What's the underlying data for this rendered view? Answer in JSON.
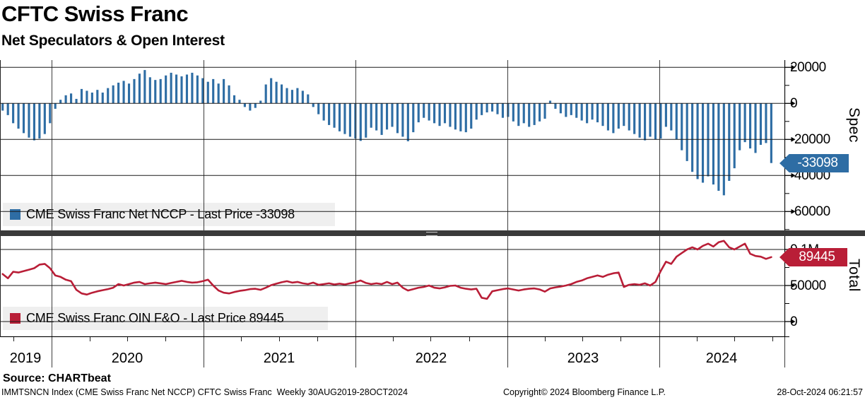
{
  "header": {
    "title": "CFTC Swiss Franc",
    "subtitle": "Net Speculators & Open Interest"
  },
  "source": {
    "label": "Source: CHARTbeat"
  },
  "statusbar": {
    "left": "IMMTSNCN Index (CME Swiss Franc Net NCCP) CFTC Swiss Franc  Weekly 30AUG2019-28OCT2024",
    "center": "Copyright© 2024 Bloomberg Finance L.P.",
    "right": "28-Oct-2024 06:21:57"
  },
  "x_axis": {
    "years": [
      "2019",
      "2020",
      "2021",
      "2022",
      "2023",
      "2024"
    ]
  },
  "colors": {
    "spec_blue": "#2E6DA4",
    "total_red": "#B91E37",
    "legend_bg": "#EFEFEF",
    "splitter": "#3A3A3A",
    "grid": "#1A1A1A",
    "year_line": "#3C3C3C"
  },
  "chart_data": [
    {
      "type": "bar",
      "name": "CME Swiss Franc Net NCCP",
      "legend_label": "CME Swiss Franc Net NCCP - Last Price -33098",
      "panel_label": "Spec",
      "frequency": "Weekly",
      "period": "30AUG2019-28OCT2024",
      "last_price": -33098,
      "last_price_label": "-33098",
      "ylim": [
        -70000,
        24000
      ],
      "ytick_values": [
        20000,
        0,
        -20000,
        -40000,
        -60000
      ],
      "ytick_labels": [
        "20000",
        "0",
        "-20000",
        "-40000",
        "-60000"
      ],
      "values": [
        -4000,
        -6500,
        -11000,
        -14000,
        -16500,
        -19000,
        -20500,
        -19500,
        -17000,
        -11000,
        -3000,
        2000,
        4500,
        5500,
        2500,
        8000,
        7000,
        6000,
        7500,
        6000,
        8500,
        10000,
        11500,
        12500,
        11000,
        13500,
        16500,
        18500,
        14500,
        13000,
        13500,
        15500,
        17000,
        16000,
        15000,
        16000,
        17000,
        15500,
        14000,
        12000,
        13500,
        11000,
        13500,
        10000,
        4500,
        2000,
        -2000,
        -4000,
        -2500,
        1500,
        10500,
        14000,
        12000,
        10500,
        8500,
        7500,
        8500,
        7000,
        5000,
        -2000,
        -6000,
        -9500,
        -12000,
        -13500,
        -15500,
        -17000,
        -18500,
        -19500,
        -20800,
        -19000,
        -13500,
        -15000,
        -17500,
        -14500,
        -13000,
        -16500,
        -18500,
        -21000,
        -16000,
        -10500,
        -8000,
        -9500,
        -11000,
        -12500,
        -11000,
        -13000,
        -14500,
        -15500,
        -16000,
        -14000,
        -9000,
        -6500,
        -5000,
        -4500,
        -6000,
        -8000,
        -7500,
        -10000,
        -12500,
        -11000,
        -13000,
        -12000,
        -10000,
        -8500,
        1500,
        -3000,
        -5500,
        -7500,
        -6500,
        -8000,
        -9500,
        -11000,
        -9000,
        -10500,
        -12500,
        -15000,
        -16500,
        -14000,
        -12500,
        -15000,
        -17000,
        -19000,
        -20500,
        -18500,
        -20000,
        -19500,
        -13000,
        -15000,
        -20000,
        -26000,
        -32000,
        -38000,
        -42000,
        -44000,
        -40500,
        -45000,
        -48500,
        -51000,
        -43000,
        -36000,
        -26000,
        -21500,
        -25000,
        -27500,
        -23000,
        -22000,
        -33098
      ]
    },
    {
      "type": "line",
      "name": "CME Swiss Franc OIN F&O",
      "legend_label": "CME Swiss Franc OIN F&O - Last Price 89445",
      "panel_label": "Total",
      "last_price": 89445,
      "last_price_label": "89445",
      "ylim": [
        -20000,
        120000
      ],
      "ytick_values": [
        100000,
        50000,
        0
      ],
      "ytick_labels": [
        "0.1M",
        "50000",
        "0"
      ],
      "values": [
        66000,
        60000,
        69000,
        68000,
        70000,
        72000,
        74000,
        79000,
        80000,
        74000,
        64000,
        62000,
        58000,
        56000,
        44000,
        39000,
        37500,
        40000,
        42000,
        43500,
        45000,
        47000,
        52000,
        50000,
        52000,
        54000,
        55000,
        52000,
        53000,
        54000,
        53000,
        52000,
        53500,
        55000,
        56500,
        55000,
        54000,
        54500,
        56000,
        58000,
        50000,
        43000,
        40000,
        39000,
        41000,
        42500,
        43500,
        45000,
        45500,
        44000,
        47000,
        50500,
        52500,
        54500,
        56000,
        54000,
        55000,
        53000,
        52000,
        54000,
        51000,
        52000,
        53000,
        51500,
        52500,
        51500,
        53000,
        54500,
        57000,
        53500,
        52000,
        53000,
        52000,
        55000,
        52000,
        54000,
        47000,
        43000,
        45000,
        47000,
        48000,
        50000,
        47000,
        46000,
        47500,
        49500,
        50000,
        47000,
        45500,
        44500,
        45500,
        33000,
        31500,
        42000,
        43500,
        45000,
        46000,
        44500,
        43000,
        44500,
        45500,
        46000,
        44500,
        41500,
        46000,
        47500,
        48500,
        50000,
        52000,
        55000,
        57000,
        60000,
        62000,
        64000,
        62000,
        65000,
        67000,
        68000,
        48000,
        51000,
        52000,
        51000,
        53000,
        50000,
        55000,
        70000,
        83000,
        80000,
        90000,
        95000,
        100000,
        103000,
        100000,
        105000,
        108000,
        104000,
        110000,
        112000,
        103000,
        100000,
        104000,
        108000,
        94000,
        91000,
        90000,
        87000,
        89445
      ]
    }
  ]
}
